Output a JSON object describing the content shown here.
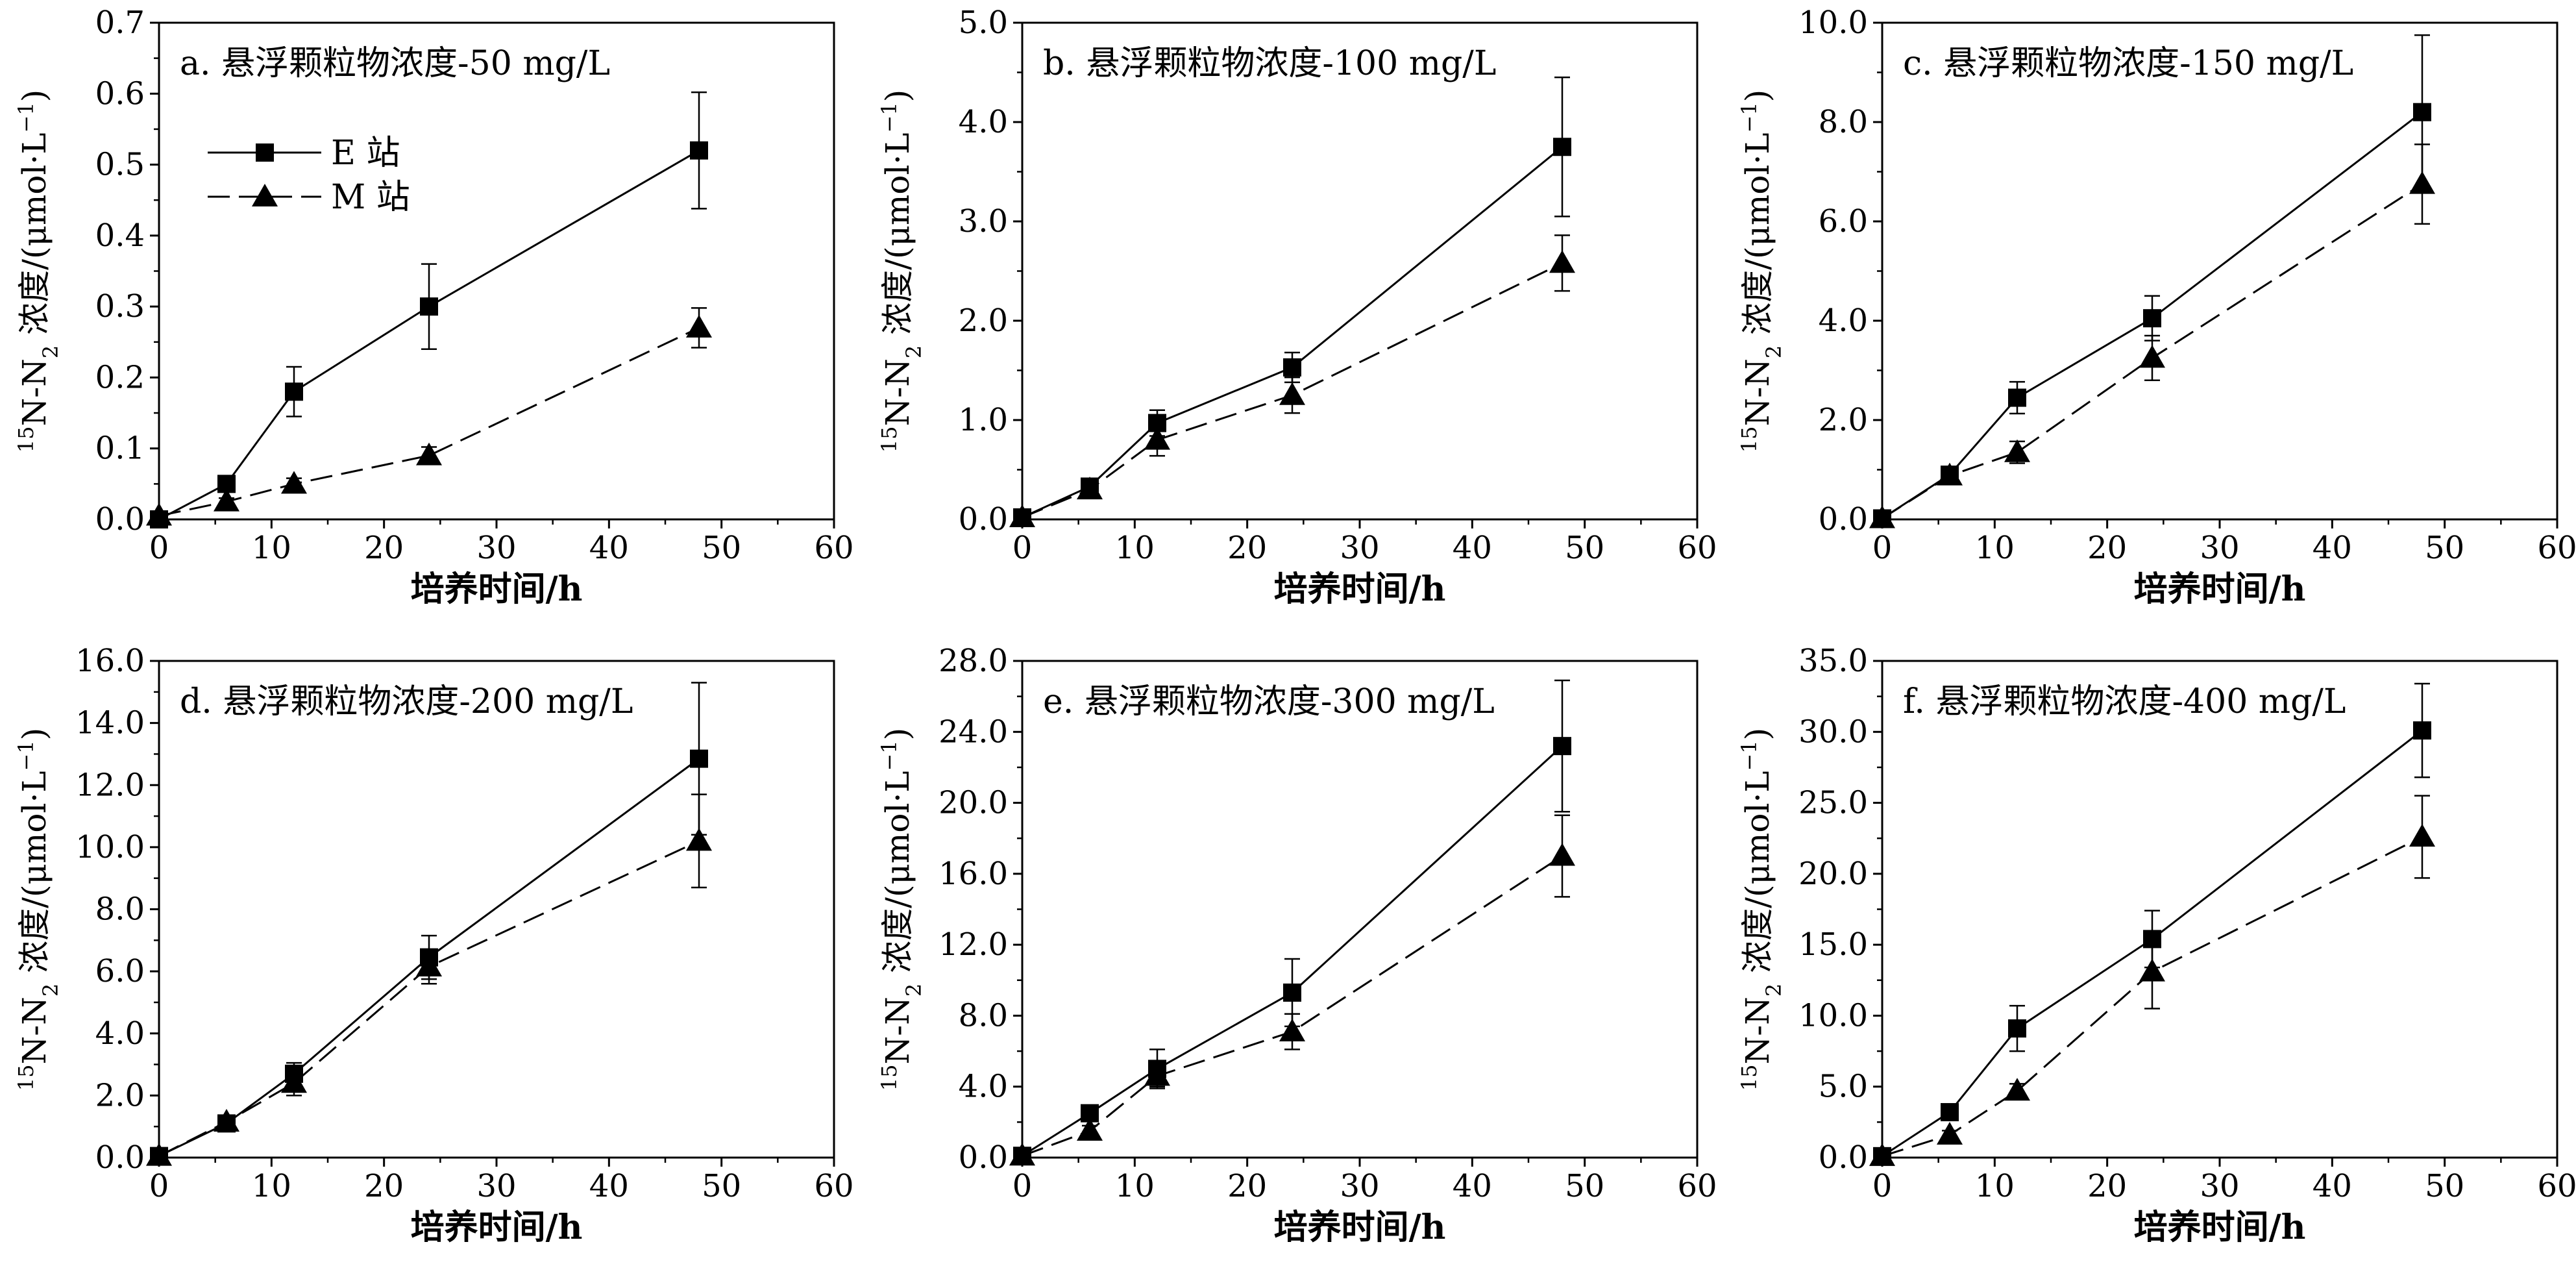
{
  "chart_data": [
    {
      "type": "line",
      "title": "a. 悬浮颗粒物浓度-50 mg/L",
      "xlabel": "培养时间/h",
      "ylabel": {
        "prefix_sup": "15",
        "main": "N-N",
        "sub": "2",
        "suffix": " 浓度/(μmol·L",
        "unit_sup": "−1",
        "close": ")"
      },
      "xlim": [
        0,
        60
      ],
      "ylim": [
        0,
        0.7
      ],
      "x_ticks": [
        "0",
        "10",
        "20",
        "30",
        "40",
        "50",
        "60"
      ],
      "y_ticks": [
        "0.0",
        "0.1",
        "0.2",
        "0.3",
        "0.4",
        "0.5",
        "0.6",
        "0.7"
      ],
      "x": [
        0,
        6,
        12,
        24,
        48
      ],
      "series": [
        {
          "name": "E 站",
          "marker": "square",
          "line": "solid",
          "values": [
            0.0,
            0.05,
            0.18,
            0.3,
            0.52
          ],
          "errors": [
            0.005,
            0.008,
            0.035,
            0.06,
            0.082
          ]
        },
        {
          "name": "M 站",
          "marker": "triangle",
          "line": "dashed",
          "values": [
            0.005,
            0.025,
            0.05,
            0.09,
            0.27
          ],
          "errors": [
            0.003,
            0.005,
            0.008,
            0.012,
            0.028
          ]
        }
      ],
      "legend": {
        "position": "top-left",
        "entries": [
          "E 站",
          "M 站"
        ]
      }
    },
    {
      "type": "line",
      "title": "b. 悬浮颗粒物浓度-100 mg/L",
      "xlabel": "培养时间/h",
      "ylabel": {
        "prefix_sup": "15",
        "main": "N-N",
        "sub": "2",
        "suffix": " 浓度/(μmol·L",
        "unit_sup": "−1",
        "close": ")"
      },
      "xlim": [
        0,
        60
      ],
      "ylim": [
        0,
        5
      ],
      "x_ticks": [
        "0",
        "10",
        "20",
        "30",
        "40",
        "50",
        "60"
      ],
      "y_ticks": [
        "0.0",
        "1.0",
        "2.0",
        "3.0",
        "4.0",
        "5.0"
      ],
      "x": [
        0,
        6,
        12,
        24,
        48
      ],
      "series": [
        {
          "name": "E 站",
          "marker": "square",
          "line": "solid",
          "values": [
            0.02,
            0.33,
            0.97,
            1.53,
            3.75
          ],
          "errors": [
            0.02,
            0.05,
            0.13,
            0.15,
            0.7
          ]
        },
        {
          "name": "M 站",
          "marker": "triangle",
          "line": "dashed",
          "values": [
            0.02,
            0.3,
            0.8,
            1.25,
            2.58
          ],
          "errors": [
            0.02,
            0.05,
            0.16,
            0.18,
            0.28
          ]
        }
      ]
    },
    {
      "type": "line",
      "title": "c. 悬浮颗粒物浓度-150 mg/L",
      "xlabel": "培养时间/h",
      "ylabel": {
        "prefix_sup": "15",
        "main": "N-N",
        "sub": "2",
        "suffix": " 浓度/(μmol·L",
        "unit_sup": "−1",
        "close": ")"
      },
      "xlim": [
        0,
        60
      ],
      "ylim": [
        0,
        10
      ],
      "x_ticks": [
        "0",
        "10",
        "20",
        "30",
        "40",
        "50",
        "60"
      ],
      "y_ticks": [
        "0.0",
        "2.0",
        "4.0",
        "6.0",
        "8.0",
        "10.0"
      ],
      "x": [
        0,
        6,
        12,
        24,
        48
      ],
      "series": [
        {
          "name": "E 站",
          "marker": "square",
          "line": "solid",
          "values": [
            0.02,
            0.9,
            2.45,
            4.05,
            8.2
          ],
          "errors": [
            0.03,
            0.12,
            0.32,
            0.45,
            1.55
          ]
        },
        {
          "name": "M 站",
          "marker": "triangle",
          "line": "dashed",
          "values": [
            0.02,
            0.88,
            1.35,
            3.25,
            6.75
          ],
          "errors": [
            0.03,
            0.1,
            0.22,
            0.45,
            0.8
          ]
        }
      ]
    },
    {
      "type": "line",
      "title": "d. 悬浮颗粒物浓度-200 mg/L",
      "xlabel": "培养时间/h",
      "ylabel": {
        "prefix_sup": "15",
        "main": "N-N",
        "sub": "2",
        "suffix": " 浓度/(μmol·L",
        "unit_sup": "−1",
        "close": ")"
      },
      "xlim": [
        0,
        60
      ],
      "ylim": [
        0,
        16
      ],
      "x_ticks": [
        "0",
        "10",
        "20",
        "30",
        "40",
        "50",
        "60"
      ],
      "y_ticks": [
        "0.0",
        "2.0",
        "4.0",
        "6.0",
        "8.0",
        "10.0",
        "12.0",
        "14.0",
        "16.0"
      ],
      "x": [
        0,
        6,
        12,
        24,
        48
      ],
      "series": [
        {
          "name": "E 站",
          "marker": "square",
          "line": "solid",
          "values": [
            0.05,
            1.1,
            2.7,
            6.45,
            12.85
          ],
          "errors": [
            0.05,
            0.12,
            0.35,
            0.7,
            2.45
          ]
        },
        {
          "name": "M 站",
          "marker": "triangle",
          "line": "dashed",
          "values": [
            0.05,
            1.15,
            2.4,
            6.15,
            10.2
          ],
          "errors": [
            0.05,
            0.12,
            0.4,
            0.55,
            1.5
          ]
        }
      ]
    },
    {
      "type": "line",
      "title": "e. 悬浮颗粒物浓度-300 mg/L",
      "xlabel": "培养时间/h",
      "ylabel": {
        "prefix_sup": "15",
        "main": "N-N",
        "sub": "2",
        "suffix": " 浓度/(μmol·L",
        "unit_sup": "−1",
        "close": ")"
      },
      "xlim": [
        0,
        60
      ],
      "ylim": [
        0,
        28
      ],
      "x_ticks": [
        "0",
        "10",
        "20",
        "30",
        "40",
        "50",
        "60"
      ],
      "y_ticks": [
        "0.0",
        "4.0",
        "8.0",
        "12.0",
        "16.0",
        "20.0",
        "24.0",
        "28.0"
      ],
      "x": [
        0,
        6,
        12,
        24,
        48
      ],
      "series": [
        {
          "name": "E 站",
          "marker": "square",
          "line": "solid",
          "values": [
            0.1,
            2.5,
            5.0,
            9.3,
            23.2
          ],
          "errors": [
            0.1,
            0.3,
            1.1,
            1.9,
            3.7
          ]
        },
        {
          "name": "M 站",
          "marker": "triangle",
          "line": "dashed",
          "values": [
            0.1,
            1.5,
            4.6,
            7.1,
            17.0
          ],
          "errors": [
            0.1,
            0.3,
            0.6,
            1.0,
            2.3
          ]
        }
      ]
    },
    {
      "type": "line",
      "title": "f. 悬浮颗粒物浓度-400 mg/L",
      "xlabel": "培养时间/h",
      "ylabel": {
        "prefix_sup": "15",
        "main": "N-N",
        "sub": "2",
        "suffix": " 浓度/(μmol·L",
        "unit_sup": "−1",
        "close": ")"
      },
      "xlim": [
        0,
        60
      ],
      "ylim": [
        0,
        35
      ],
      "x_ticks": [
        "0",
        "10",
        "20",
        "30",
        "40",
        "50",
        "60"
      ],
      "y_ticks": [
        "0.0",
        "5.0",
        "10.0",
        "15.0",
        "20.0",
        "25.0",
        "30.0",
        "35.0"
      ],
      "x": [
        0,
        6,
        12,
        24,
        48
      ],
      "series": [
        {
          "name": "E 站",
          "marker": "square",
          "line": "solid",
          "values": [
            0.1,
            3.2,
            9.1,
            15.4,
            30.1
          ],
          "errors": [
            0.1,
            0.3,
            1.6,
            2.0,
            3.3
          ]
        },
        {
          "name": "M 站",
          "marker": "triangle",
          "line": "dashed",
          "values": [
            0.1,
            1.6,
            4.7,
            13.1,
            22.6
          ],
          "errors": [
            0.1,
            0.3,
            0.5,
            2.6,
            2.9
          ]
        }
      ]
    }
  ]
}
